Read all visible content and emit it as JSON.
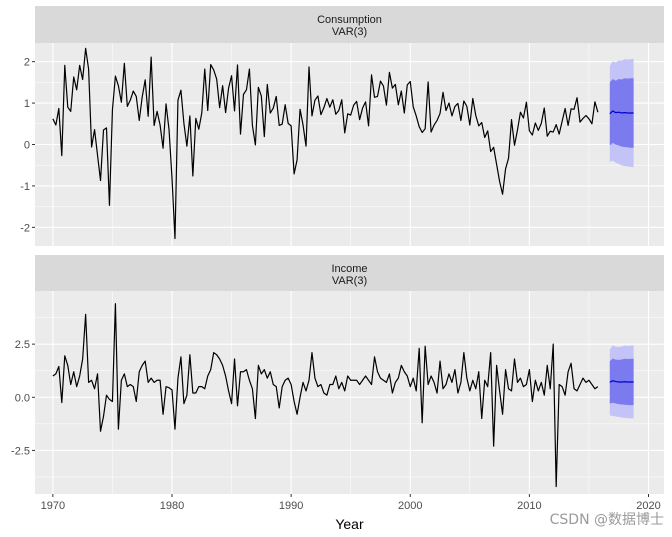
{
  "chart_data": {
    "type": "line",
    "xlabel": "Year",
    "x_ticks": [
      1970,
      1980,
      1990,
      2000,
      2010,
      2020
    ],
    "x_range": [
      1968.5,
      2021.3
    ],
    "grid": true,
    "watermark": "CSDN @数据博士",
    "colors": {
      "panel_bg": "#ebebeb",
      "strip_bg": "#d9d9d9",
      "grid_major": "#ffffff",
      "series": "#000000",
      "forecast_line": "#0000cc",
      "interval_80": "#7b7bef",
      "interval_95": "#c3c3f7"
    },
    "panels": [
      {
        "strip_line1": "Consumption",
        "strip_line2": "VAR(3)",
        "ylim": [
          -2.45,
          2.45
        ],
        "y_ticks": [
          -2,
          -1,
          0,
          1,
          2
        ],
        "y_tick_labels": [
          "-2",
          "-1",
          "0",
          "1",
          "2"
        ],
        "series": {
          "start": 1970.0,
          "step": 0.25,
          "values": [
            0.62,
            0.47,
            0.87,
            -0.27,
            1.91,
            0.9,
            0.8,
            1.63,
            1.32,
            1.91,
            1.57,
            2.32,
            1.82,
            -0.06,
            0.36,
            -0.26,
            -0.87,
            0.35,
            0.4,
            -1.47,
            0.84,
            1.65,
            1.42,
            1.02,
            1.96,
            0.92,
            1.07,
            1.29,
            1.16,
            0.58,
            1.15,
            1.56,
            0.68,
            2.11,
            0.46,
            0.8,
            0.47,
            -0.09,
            0.98,
            0.36,
            -0.81,
            -2.27,
            1.07,
            1.31,
            0.51,
            -0.04,
            0.69,
            -0.76,
            0.63,
            0.37,
            0.76,
            1.82,
            0.82,
            1.93,
            1.8,
            1.58,
            0.89,
            1.42,
            0.77,
            1.36,
            1.66,
            0.81,
            1.92,
            0.25,
            1.21,
            1.32,
            1.82,
            0.46,
            -0.01,
            1.38,
            1.17,
            0.19,
            1.45,
            0.76,
            0.88,
            1.16,
            0.46,
            0.49,
            0.96,
            0.51,
            0.45,
            -0.71,
            -0.37,
            0.85,
            0.47,
            -0.04,
            1.87,
            0.69,
            1.07,
            1.17,
            0.72,
            0.89,
            1.11,
            0.9,
            1.08,
            0.73,
            0.82,
            1.08,
            0.28,
            0.74,
            0.71,
            0.95,
            1.04,
            0.6,
            0.88,
            1.03,
            0.45,
            1.68,
            1.14,
            1.16,
            1.53,
            1.41,
            0.95,
            1.74,
            1.36,
            1.45,
            0.96,
            1.29,
            0.76,
            1.44,
            1.52,
            0.91,
            0.69,
            0.43,
            0.29,
            0.38,
            1.51,
            0.3,
            0.47,
            0.58,
            0.75,
            1.26,
            0.82,
            1.0,
            0.69,
            0.92,
            0.99,
            0.58,
            1.05,
            0.92,
            0.47,
            1.11,
            0.7,
            0.45,
            0.53,
            0.17,
            0.33,
            -0.17,
            -0.07,
            -0.48,
            -0.89,
            -1.2,
            -0.59,
            -0.33,
            0.6,
            -0.02,
            0.35,
            0.78,
            0.64,
            1.02,
            0.33,
            0.23,
            0.52,
            0.34,
            0.51,
            0.88,
            0.2,
            0.32,
            0.3,
            0.48,
            0.25,
            0.56,
            0.87,
            0.46,
            0.86,
            0.85,
            1.13,
            0.54,
            0.63,
            0.7,
            0.62,
            0.5,
            1.03,
            0.78
          ]
        },
        "forecast": {
          "x": [
            2016.75,
            2017.0,
            2017.25,
            2017.5,
            2017.75,
            2018.0,
            2018.25,
            2018.5,
            2018.75
          ],
          "mean": [
            0.74,
            0.81,
            0.77,
            0.78,
            0.76,
            0.77,
            0.76,
            0.76,
            0.76
          ],
          "lo80": [
            -0.02,
            0.04,
            0.0,
            -0.02,
            -0.05,
            -0.06,
            -0.07,
            -0.08,
            -0.08
          ],
          "hi80": [
            1.5,
            1.58,
            1.54,
            1.58,
            1.57,
            1.6,
            1.59,
            1.6,
            1.6
          ],
          "lo95": [
            -0.42,
            -0.39,
            -0.44,
            -0.47,
            -0.5,
            -0.52,
            -0.53,
            -0.54,
            -0.55
          ],
          "hi95": [
            1.9,
            2.01,
            1.98,
            2.03,
            2.02,
            2.06,
            2.05,
            2.06,
            2.07
          ]
        }
      },
      {
        "strip_line1": "Income",
        "strip_line2": "VAR(3)",
        "ylim": [
          -4.55,
          5.0
        ],
        "y_ticks": [
          -2.5,
          0.0,
          2.5
        ],
        "y_tick_labels": [
          "-2.5",
          "0.0",
          "2.5"
        ],
        "series": {
          "start": 1970.0,
          "step": 0.25,
          "values": [
            1.0,
            1.1,
            1.45,
            -0.25,
            1.95,
            1.5,
            0.6,
            1.2,
            0.5,
            1.0,
            1.8,
            3.9,
            0.7,
            0.8,
            0.4,
            1.1,
            -1.6,
            -0.9,
            0.1,
            -0.1,
            -0.2,
            4.4,
            -1.5,
            0.8,
            1.1,
            0.5,
            0.6,
            0.5,
            -0.2,
            1.2,
            1.5,
            1.7,
            0.7,
            0.9,
            0.7,
            0.8,
            0.8,
            -0.8,
            0.5,
            0.45,
            0.35,
            -1.5,
            0.9,
            1.9,
            -0.3,
            0.1,
            2.0,
            0.2,
            0.2,
            0.5,
            0.5,
            0.4,
            1.0,
            1.3,
            2.1,
            2.0,
            1.8,
            1.5,
            1.0,
            0.3,
            -0.3,
            1.8,
            -0.4,
            1.2,
            1.2,
            1.3,
            0.8,
            0.4,
            -1.0,
            1.5,
            1.1,
            1.3,
            0.9,
            1.2,
            0.6,
            0.5,
            -0.5,
            0.5,
            0.8,
            0.9,
            0.6,
            -0.2,
            -0.8,
            0.0,
            0.7,
            0.3,
            0.8,
            2.1,
            0.9,
            0.5,
            0.6,
            0.2,
            0.1,
            0.6,
            0.6,
            1.0,
            0.4,
            0.7,
            0.3,
            1.0,
            0.8,
            0.8,
            0.8,
            0.6,
            0.8,
            1.0,
            0.8,
            0.6,
            1.9,
            1.2,
            0.9,
            0.8,
            0.7,
            1.1,
            0.2,
            0.7,
            0.9,
            1.5,
            1.2,
            1.0,
            0.5,
            0.9,
            0.3,
            2.3,
            -1.2,
            2.4,
            0.6,
            1.0,
            0.7,
            0.2,
            1.7,
            0.4,
            0.6,
            1.1,
            0.7,
            1.3,
            0.2,
            0.7,
            2.1,
            0.9,
            0.3,
            0.8,
            0.4,
            1.2,
            -1.0,
            0.8,
            0.5,
            2.1,
            -2.3,
            1.5,
            0.3,
            -0.8,
            1.3,
            0.4,
            0.3,
            1.8,
            0.7,
            0.9,
            0.5,
            0.6,
            1.3,
            -0.2,
            0.8,
            0.3,
            0.7,
            0.1,
            1.5,
            0.4,
            2.5,
            -4.2,
            0.6,
            0.5,
            0.1,
            1.2,
            1.6,
            0.4,
            0.3,
            0.6,
            0.9,
            0.7,
            0.8,
            0.6,
            0.4,
            0.5
          ]
        },
        "forecast": {
          "x": [
            2016.75,
            2017.0,
            2017.25,
            2017.5,
            2017.75,
            2018.0,
            2018.25,
            2018.5,
            2018.75
          ],
          "mean": [
            0.7,
            0.78,
            0.74,
            0.72,
            0.72,
            0.73,
            0.72,
            0.72,
            0.72
          ],
          "lo80": [
            -0.3,
            -0.26,
            -0.29,
            -0.32,
            -0.34,
            -0.35,
            -0.36,
            -0.37,
            -0.37
          ],
          "hi80": [
            1.7,
            1.82,
            1.77,
            1.76,
            1.78,
            1.81,
            1.8,
            1.81,
            1.81
          ],
          "lo95": [
            -0.85,
            -0.88,
            -0.9,
            -0.93,
            -0.95,
            -0.97,
            -0.98,
            -0.99,
            -1.0
          ],
          "hi95": [
            2.25,
            2.44,
            2.38,
            2.37,
            2.39,
            2.43,
            2.42,
            2.43,
            2.44
          ]
        }
      }
    ]
  }
}
